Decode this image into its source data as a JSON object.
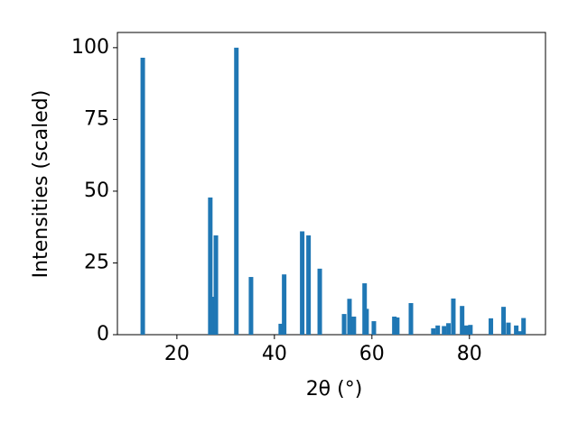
{
  "chart_data": {
    "type": "bar",
    "xlabel": "2θ (°)",
    "ylabel": "Intensities (scaled)",
    "x": [
      13.0,
      26.85,
      27.2,
      28.0,
      32.2,
      35.2,
      41.3,
      42.0,
      45.7,
      47.0,
      49.3,
      54.3,
      55.4,
      55.7,
      56.3,
      58.5,
      58.9,
      60.4,
      64.6,
      65.2,
      68.0,
      72.6,
      73.5,
      74.8,
      75.7,
      76.7,
      78.5,
      79.3,
      80.2,
      84.4,
      87.0,
      88.0,
      89.6,
      90.4,
      91.1
    ],
    "values": [
      96.5,
      47.8,
      13.2,
      34.6,
      100,
      20.1,
      3.8,
      21,
      36,
      34.6,
      23,
      7.2,
      12.5,
      6,
      6.3,
      17.9,
      9,
      4.7,
      6.3,
      6,
      11,
      2.2,
      3.2,
      3,
      4,
      12.6,
      10,
      3.2,
      3.4,
      5.7,
      9.7,
      4.2,
      3.2,
      1.2,
      5.8
    ],
    "color": "#1f77b4",
    "xlim": [
      7.8,
      95.6
    ],
    "xticks": [
      20,
      40,
      60,
      80
    ],
    "ylim": [
      0,
      105.3
    ],
    "yticks": [
      0,
      25,
      50,
      75,
      100
    ],
    "grid": false
  }
}
